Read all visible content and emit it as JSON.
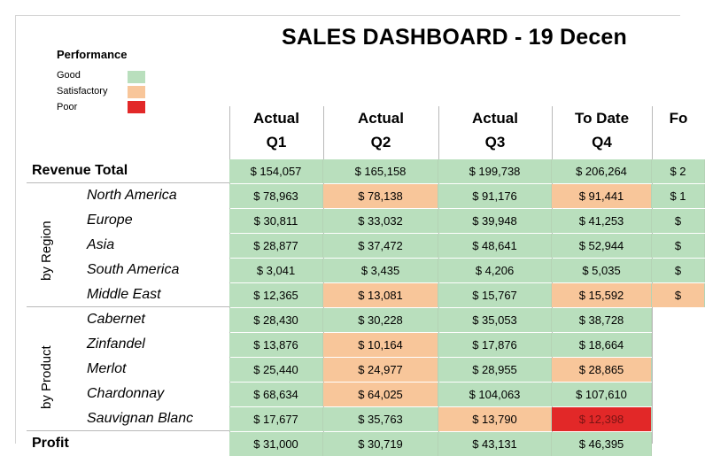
{
  "title": "SALES DASHBOARD - 19 Decen",
  "legend": {
    "title": "Performance",
    "items": [
      {
        "label": "Good",
        "color": "#b9dfbd"
      },
      {
        "label": "Satisfactory",
        "color": "#f8c69a"
      },
      {
        "label": "Poor",
        "color": "#e22828"
      }
    ]
  },
  "columns": [
    {
      "line1": "Actual",
      "line2": "Q1"
    },
    {
      "line1": "Actual",
      "line2": "Q2"
    },
    {
      "line1": "Actual",
      "line2": "Q3"
    },
    {
      "line1": "To Date",
      "line2": "Q4"
    },
    {
      "line1": "Fo",
      "line2": ""
    }
  ],
  "groups": {
    "region": "by Region",
    "product": "by Product"
  },
  "rows": [
    {
      "label": "Revenue Total",
      "kind": "total",
      "cells": [
        {
          "v": "$ 154,057",
          "s": "good"
        },
        {
          "v": "$ 165,158",
          "s": "good"
        },
        {
          "v": "$ 199,738",
          "s": "good"
        },
        {
          "v": "$ 206,264",
          "s": "good"
        },
        {
          "v": "$ 2",
          "s": "good"
        }
      ]
    },
    {
      "label": "North America",
      "kind": "sub",
      "cells": [
        {
          "v": "$ 78,963",
          "s": "good"
        },
        {
          "v": "$ 78,138",
          "s": "satisfactory"
        },
        {
          "v": "$ 91,176",
          "s": "good"
        },
        {
          "v": "$ 91,441",
          "s": "satisfactory"
        },
        {
          "v": "$ 1",
          "s": "good"
        }
      ]
    },
    {
      "label": "Europe",
      "kind": "sub",
      "cells": [
        {
          "v": "$ 30,811",
          "s": "good"
        },
        {
          "v": "$ 33,032",
          "s": "good"
        },
        {
          "v": "$ 39,948",
          "s": "good"
        },
        {
          "v": "$ 41,253",
          "s": "good"
        },
        {
          "v": "$",
          "s": "good"
        }
      ]
    },
    {
      "label": "Asia",
      "kind": "sub",
      "cells": [
        {
          "v": "$ 28,877",
          "s": "good"
        },
        {
          "v": "$ 37,472",
          "s": "good"
        },
        {
          "v": "$ 48,641",
          "s": "good"
        },
        {
          "v": "$ 52,944",
          "s": "good"
        },
        {
          "v": "$",
          "s": "good"
        }
      ]
    },
    {
      "label": "South America",
      "kind": "sub",
      "cells": [
        {
          "v": "$ 3,041",
          "s": "good"
        },
        {
          "v": "$ 3,435",
          "s": "good"
        },
        {
          "v": "$ 4,206",
          "s": "good"
        },
        {
          "v": "$ 5,035",
          "s": "good"
        },
        {
          "v": "$",
          "s": "good"
        }
      ]
    },
    {
      "label": "Middle East",
      "kind": "sub",
      "cells": [
        {
          "v": "$ 12,365",
          "s": "good"
        },
        {
          "v": "$ 13,081",
          "s": "satisfactory"
        },
        {
          "v": "$ 15,767",
          "s": "good"
        },
        {
          "v": "$ 15,592",
          "s": "satisfactory"
        },
        {
          "v": "$",
          "s": "satisfactory"
        }
      ]
    },
    {
      "label": "Cabernet",
      "kind": "sub",
      "cells": [
        {
          "v": "$ 28,430",
          "s": "good"
        },
        {
          "v": "$ 30,228",
          "s": "good"
        },
        {
          "v": "$ 35,053",
          "s": "good"
        },
        {
          "v": "$ 38,728",
          "s": "good"
        }
      ]
    },
    {
      "label": "Zinfandel",
      "kind": "sub",
      "cells": [
        {
          "v": "$ 13,876",
          "s": "good"
        },
        {
          "v": "$ 10,164",
          "s": "satisfactory"
        },
        {
          "v": "$ 17,876",
          "s": "good"
        },
        {
          "v": "$ 18,664",
          "s": "good"
        }
      ]
    },
    {
      "label": "Merlot",
      "kind": "sub",
      "cells": [
        {
          "v": "$ 25,440",
          "s": "good"
        },
        {
          "v": "$ 24,977",
          "s": "satisfactory"
        },
        {
          "v": "$ 28,955",
          "s": "good"
        },
        {
          "v": "$ 28,865",
          "s": "satisfactory"
        }
      ]
    },
    {
      "label": "Chardonnay",
      "kind": "sub",
      "cells": [
        {
          "v": "$ 68,634",
          "s": "good"
        },
        {
          "v": "$ 64,025",
          "s": "satisfactory"
        },
        {
          "v": "$ 104,063",
          "s": "good"
        },
        {
          "v": "$ 107,610",
          "s": "good"
        }
      ]
    },
    {
      "label": "Sauvignan Blanc",
      "kind": "sub",
      "cells": [
        {
          "v": "$ 17,677",
          "s": "good"
        },
        {
          "v": "$ 35,763",
          "s": "good"
        },
        {
          "v": "$ 13,790",
          "s": "satisfactory"
        },
        {
          "v": "$ 12,398",
          "s": "poor"
        }
      ]
    },
    {
      "label": "Profit",
      "kind": "total",
      "cells": [
        {
          "v": "$ 31,000",
          "s": "good"
        },
        {
          "v": "$ 30,719",
          "s": "good"
        },
        {
          "v": "$ 43,131",
          "s": "good"
        },
        {
          "v": "$ 46,395",
          "s": "good"
        }
      ]
    }
  ]
}
